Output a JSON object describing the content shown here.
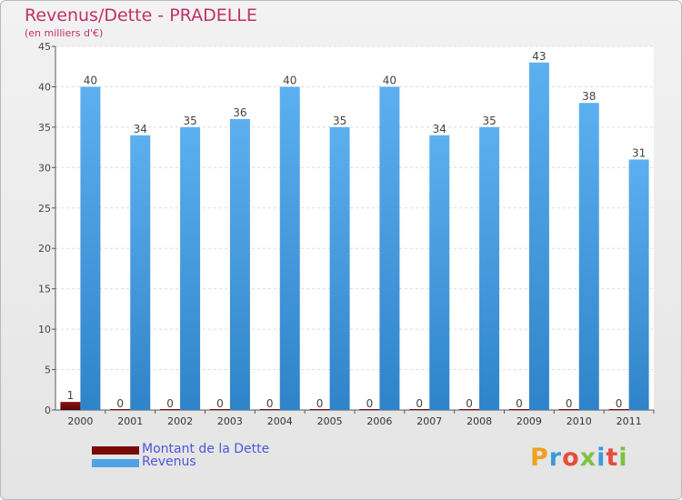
{
  "chart_data": {
    "type": "bar",
    "title": "Revenus/Dette - PRADELLE",
    "subtitle": "(en milliers d'€)",
    "categories": [
      "2000",
      "2001",
      "2002",
      "2003",
      "2004",
      "2005",
      "2006",
      "2007",
      "2008",
      "2009",
      "2010",
      "2011"
    ],
    "series": [
      {
        "name": "Montant de la Dette",
        "color": "#7a0a0a",
        "values": [
          1,
          0,
          0,
          0,
          0,
          0,
          0,
          0,
          0,
          0,
          0,
          0
        ]
      },
      {
        "name": "Revenus",
        "color": "#4ea3e6",
        "values": [
          40,
          34,
          35,
          36,
          40,
          35,
          40,
          34,
          35,
          43,
          38,
          31
        ]
      }
    ],
    "ylim": [
      0,
      45
    ],
    "yticks": [
      0,
      5,
      10,
      15,
      20,
      25,
      30,
      35,
      40,
      45
    ],
    "grid": true,
    "legend": "bottom-left"
  },
  "logo": {
    "text": "Proxiti"
  }
}
